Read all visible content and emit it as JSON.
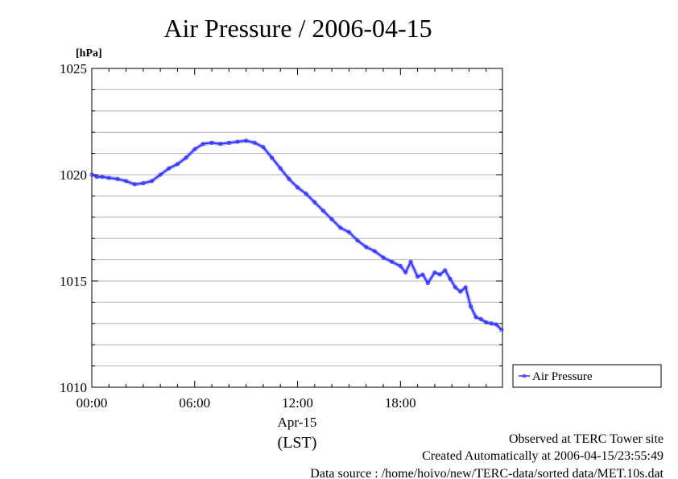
{
  "chart_data": {
    "type": "line",
    "title": "Air Pressure / 2006-04-15",
    "ylabel": "[hPa]",
    "xlabel": "(LST)",
    "date_label": "Apr-15",
    "ylim": [
      1010,
      1025
    ],
    "y_ticks": [
      "1010",
      "1015",
      "1020",
      "1025"
    ],
    "xlim_hours": [
      0,
      23.95
    ],
    "x_ticks": [
      {
        "hour": 0,
        "label": "00:00"
      },
      {
        "hour": 6,
        "label": "06:00"
      },
      {
        "hour": 12,
        "label": "12:00"
      },
      {
        "hour": 18,
        "label": "18:00"
      }
    ],
    "grid": true,
    "legend": {
      "placement": "right",
      "label": "Air Pressure"
    },
    "series": [
      {
        "name": "Air Pressure",
        "color": "#3333ff",
        "x_hours": [
          0,
          0.3,
          0.6,
          1.0,
          1.5,
          2.0,
          2.5,
          3.0,
          3.5,
          4.0,
          4.5,
          5.0,
          5.5,
          6.0,
          6.5,
          7.0,
          7.5,
          8.0,
          8.5,
          9.0,
          9.5,
          10.0,
          10.5,
          11.0,
          11.5,
          12.0,
          12.5,
          13.0,
          13.5,
          14.0,
          14.5,
          15.0,
          15.5,
          16.0,
          16.5,
          17.0,
          17.5,
          18.0,
          18.3,
          18.6,
          19.0,
          19.3,
          19.6,
          20.0,
          20.3,
          20.6,
          20.9,
          21.2,
          21.5,
          21.8,
          22.1,
          22.4,
          22.7,
          23.0,
          23.3,
          23.6,
          23.9
        ],
        "values": [
          1020.0,
          1019.9,
          1019.9,
          1019.85,
          1019.8,
          1019.7,
          1019.55,
          1019.6,
          1019.7,
          1020.0,
          1020.3,
          1020.5,
          1020.8,
          1021.2,
          1021.45,
          1021.5,
          1021.45,
          1021.5,
          1021.55,
          1021.6,
          1021.5,
          1021.3,
          1020.8,
          1020.3,
          1019.8,
          1019.4,
          1019.1,
          1018.7,
          1018.3,
          1017.9,
          1017.5,
          1017.3,
          1016.9,
          1016.6,
          1016.4,
          1016.1,
          1015.9,
          1015.7,
          1015.4,
          1015.9,
          1015.2,
          1015.3,
          1014.9,
          1015.4,
          1015.3,
          1015.5,
          1015.1,
          1014.7,
          1014.5,
          1014.7,
          1013.8,
          1013.3,
          1013.2,
          1013.05,
          1013.0,
          1012.95,
          1012.7
        ]
      }
    ]
  },
  "footer": {
    "line1": "Observed at TERC Tower site",
    "line2": "Created Automatically at 2006-04-15/23:55:49",
    "line3": "Data source : /home/hoivo/new/TERC-data/sorted  data/MET.10s.dat"
  }
}
